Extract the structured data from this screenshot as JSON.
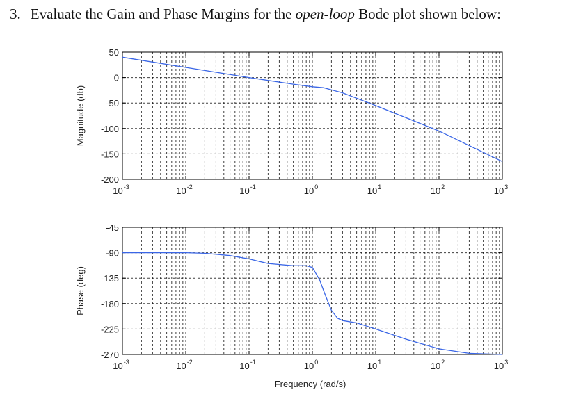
{
  "question": {
    "number": "3.",
    "text_before": "Evaluate the Gain and Phase Margins for the ",
    "text_italic": "open-loop",
    "text_after": " Bode plot shown below:"
  },
  "colors": {
    "curve": "#3a66e6",
    "frame": "#000000",
    "grid": "#000000"
  },
  "chart_data": [
    {
      "type": "line",
      "title": "",
      "xlabel": "",
      "ylabel": "Magnitude (db)",
      "xscale": "log",
      "xlim": [
        0.001,
        1000
      ],
      "ylim": [
        -200,
        50
      ],
      "grid": true,
      "yticks": [
        50,
        0,
        -50,
        -100,
        -150,
        -200
      ],
      "xticks": [
        {
          "base": "10",
          "exp": "-3"
        },
        {
          "base": "10",
          "exp": "-2"
        },
        {
          "base": "10",
          "exp": "-1"
        },
        {
          "base": "10",
          "exp": "0"
        },
        {
          "base": "10",
          "exp": "1"
        },
        {
          "base": "10",
          "exp": "2"
        },
        {
          "base": "10",
          "exp": "3"
        }
      ],
      "series": [
        {
          "x": [
            0.001,
            0.01,
            0.1,
            0.5,
            1,
            1.5,
            3,
            10,
            100,
            1000
          ],
          "y": [
            40,
            20,
            0,
            -13,
            -18,
            -20,
            -30,
            -55,
            -105,
            -165
          ]
        }
      ]
    },
    {
      "type": "line",
      "title": "",
      "xlabel": "Frequency (rad/s)",
      "ylabel": "Phase (deg)",
      "xscale": "log",
      "xlim": [
        0.001,
        1000
      ],
      "ylim": [
        -270,
        -45
      ],
      "grid": true,
      "yticks": [
        -45,
        -90,
        -135,
        -180,
        -225,
        -270
      ],
      "xticks": [
        {
          "base": "10",
          "exp": "-3"
        },
        {
          "base": "10",
          "exp": "-2"
        },
        {
          "base": "10",
          "exp": "-1"
        },
        {
          "base": "10",
          "exp": "0"
        },
        {
          "base": "10",
          "exp": "1"
        },
        {
          "base": "10",
          "exp": "2"
        },
        {
          "base": "10",
          "exp": "3"
        }
      ],
      "series": [
        {
          "x": [
            0.001,
            0.01,
            0.02,
            0.05,
            0.1,
            0.2,
            0.5,
            0.8,
            1.0,
            1.3,
            1.6,
            2.0,
            2.5,
            3,
            5,
            10,
            30,
            100,
            300,
            1000
          ],
          "y": [
            -90,
            -90,
            -91,
            -95,
            -101,
            -109,
            -113,
            -113,
            -116,
            -138,
            -165,
            -192,
            -206,
            -210,
            -214,
            -225,
            -243,
            -260,
            -268,
            -270
          ]
        }
      ]
    }
  ]
}
